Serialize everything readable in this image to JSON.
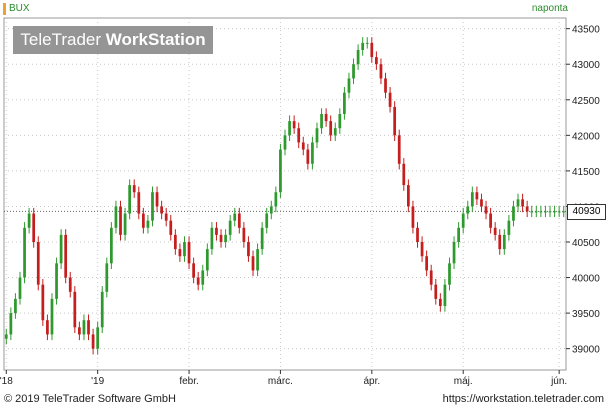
{
  "header": {
    "symbol": "BUX",
    "period": "naponta"
  },
  "watermark": {
    "brand": "TeleTrader",
    "product": "WorkStation"
  },
  "footer": {
    "copyright": "© 2019 TeleTrader Software GmbH",
    "url": "https://workstation.teletrader.com"
  },
  "last_price_tag": "40930",
  "colors": {
    "up": "#2e9a2e",
    "down": "#c41e1e",
    "grid": "#c8c8c8",
    "axis": "#333333"
  },
  "chart_data": {
    "type": "candlestick",
    "title": "BUX",
    "interval": "naponta",
    "ylim": [
      38700,
      43650
    ],
    "y_ticks": [
      39000,
      39500,
      40000,
      40500,
      41000,
      41500,
      42000,
      42500,
      43000,
      43500
    ],
    "x_tick_labels": [
      {
        "label": "'18",
        "index": 0
      },
      {
        "label": "'19",
        "index": 20
      },
      {
        "label": "febr.",
        "index": 40
      },
      {
        "label": "márc.",
        "index": 60
      },
      {
        "label": "ápr.",
        "index": 80
      },
      {
        "label": "máj.",
        "index": 100
      },
      {
        "label": "jún.",
        "index": 121
      }
    ],
    "grid": true,
    "last_value": 40930,
    "close": [
      39200,
      39500,
      39700,
      40000,
      40700,
      40900,
      40500,
      39900,
      39400,
      39200,
      39700,
      40200,
      40600,
      40000,
      39800,
      39300,
      39200,
      39400,
      39200,
      39000,
      39300,
      39800,
      40200,
      40700,
      41000,
      40600,
      40900,
      41300,
      41200,
      40900,
      40700,
      40800,
      41200,
      41000,
      40900,
      40800,
      40600,
      40400,
      40300,
      40500,
      40200,
      40000,
      39900,
      40100,
      40400,
      40700,
      40600,
      40500,
      40600,
      40800,
      40900,
      40700,
      40500,
      40300,
      40100,
      40400,
      40700,
      40900,
      41000,
      41200,
      41800,
      42000,
      42200,
      42100,
      41900,
      41800,
      41600,
      41900,
      42100,
      42300,
      42200,
      42000,
      42100,
      42300,
      42600,
      42800,
      43000,
      43200,
      43300,
      43300,
      43100,
      43000,
      42800,
      42600,
      42400,
      42000,
      41600,
      41300,
      41000,
      40700,
      40500,
      40300,
      40100,
      39900,
      39700,
      39600,
      39900,
      40200,
      40500,
      40700,
      40900,
      41000,
      41200,
      41100,
      41000,
      40900,
      40700,
      40600,
      40400,
      40600,
      40800,
      41000,
      41100,
      41000,
      40930,
      40930,
      40930,
      40930,
      40930,
      40930,
      40930,
      40930,
      40930
    ]
  }
}
